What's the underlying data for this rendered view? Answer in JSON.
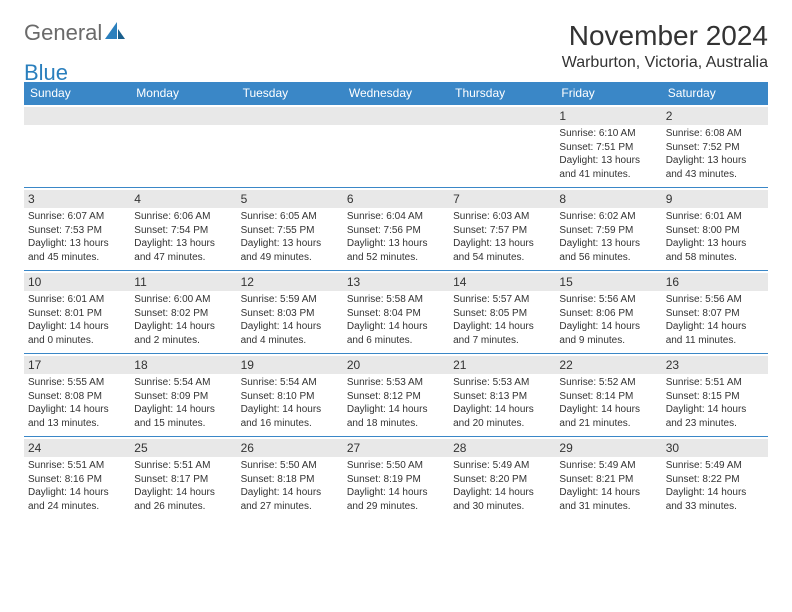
{
  "logo": {
    "text_general": "General",
    "text_blue": "Blue",
    "icon_color": "#2a7fbd"
  },
  "title": "November 2024",
  "location": "Warburton, Victoria, Australia",
  "colors": {
    "header_bg": "#3a87c7",
    "header_text": "#ffffff",
    "border": "#3a87c7",
    "daynum_bg": "#e8e8e8",
    "text": "#333333"
  },
  "weekdays": [
    "Sunday",
    "Monday",
    "Tuesday",
    "Wednesday",
    "Thursday",
    "Friday",
    "Saturday"
  ],
  "weeks": [
    [
      null,
      null,
      null,
      null,
      null,
      {
        "n": "1",
        "sr": "6:10 AM",
        "ss": "7:51 PM",
        "dl": "13 hours and 41 minutes."
      },
      {
        "n": "2",
        "sr": "6:08 AM",
        "ss": "7:52 PM",
        "dl": "13 hours and 43 minutes."
      }
    ],
    [
      {
        "n": "3",
        "sr": "6:07 AM",
        "ss": "7:53 PM",
        "dl": "13 hours and 45 minutes."
      },
      {
        "n": "4",
        "sr": "6:06 AM",
        "ss": "7:54 PM",
        "dl": "13 hours and 47 minutes."
      },
      {
        "n": "5",
        "sr": "6:05 AM",
        "ss": "7:55 PM",
        "dl": "13 hours and 49 minutes."
      },
      {
        "n": "6",
        "sr": "6:04 AM",
        "ss": "7:56 PM",
        "dl": "13 hours and 52 minutes."
      },
      {
        "n": "7",
        "sr": "6:03 AM",
        "ss": "7:57 PM",
        "dl": "13 hours and 54 minutes."
      },
      {
        "n": "8",
        "sr": "6:02 AM",
        "ss": "7:59 PM",
        "dl": "13 hours and 56 minutes."
      },
      {
        "n": "9",
        "sr": "6:01 AM",
        "ss": "8:00 PM",
        "dl": "13 hours and 58 minutes."
      }
    ],
    [
      {
        "n": "10",
        "sr": "6:01 AM",
        "ss": "8:01 PM",
        "dl": "14 hours and 0 minutes."
      },
      {
        "n": "11",
        "sr": "6:00 AM",
        "ss": "8:02 PM",
        "dl": "14 hours and 2 minutes."
      },
      {
        "n": "12",
        "sr": "5:59 AM",
        "ss": "8:03 PM",
        "dl": "14 hours and 4 minutes."
      },
      {
        "n": "13",
        "sr": "5:58 AM",
        "ss": "8:04 PM",
        "dl": "14 hours and 6 minutes."
      },
      {
        "n": "14",
        "sr": "5:57 AM",
        "ss": "8:05 PM",
        "dl": "14 hours and 7 minutes."
      },
      {
        "n": "15",
        "sr": "5:56 AM",
        "ss": "8:06 PM",
        "dl": "14 hours and 9 minutes."
      },
      {
        "n": "16",
        "sr": "5:56 AM",
        "ss": "8:07 PM",
        "dl": "14 hours and 11 minutes."
      }
    ],
    [
      {
        "n": "17",
        "sr": "5:55 AM",
        "ss": "8:08 PM",
        "dl": "14 hours and 13 minutes."
      },
      {
        "n": "18",
        "sr": "5:54 AM",
        "ss": "8:09 PM",
        "dl": "14 hours and 15 minutes."
      },
      {
        "n": "19",
        "sr": "5:54 AM",
        "ss": "8:10 PM",
        "dl": "14 hours and 16 minutes."
      },
      {
        "n": "20",
        "sr": "5:53 AM",
        "ss": "8:12 PM",
        "dl": "14 hours and 18 minutes."
      },
      {
        "n": "21",
        "sr": "5:53 AM",
        "ss": "8:13 PM",
        "dl": "14 hours and 20 minutes."
      },
      {
        "n": "22",
        "sr": "5:52 AM",
        "ss": "8:14 PM",
        "dl": "14 hours and 21 minutes."
      },
      {
        "n": "23",
        "sr": "5:51 AM",
        "ss": "8:15 PM",
        "dl": "14 hours and 23 minutes."
      }
    ],
    [
      {
        "n": "24",
        "sr": "5:51 AM",
        "ss": "8:16 PM",
        "dl": "14 hours and 24 minutes."
      },
      {
        "n": "25",
        "sr": "5:51 AM",
        "ss": "8:17 PM",
        "dl": "14 hours and 26 minutes."
      },
      {
        "n": "26",
        "sr": "5:50 AM",
        "ss": "8:18 PM",
        "dl": "14 hours and 27 minutes."
      },
      {
        "n": "27",
        "sr": "5:50 AM",
        "ss": "8:19 PM",
        "dl": "14 hours and 29 minutes."
      },
      {
        "n": "28",
        "sr": "5:49 AM",
        "ss": "8:20 PM",
        "dl": "14 hours and 30 minutes."
      },
      {
        "n": "29",
        "sr": "5:49 AM",
        "ss": "8:21 PM",
        "dl": "14 hours and 31 minutes."
      },
      {
        "n": "30",
        "sr": "5:49 AM",
        "ss": "8:22 PM",
        "dl": "14 hours and 33 minutes."
      }
    ]
  ],
  "labels": {
    "sunrise": "Sunrise:",
    "sunset": "Sunset:",
    "daylight": "Daylight:"
  }
}
